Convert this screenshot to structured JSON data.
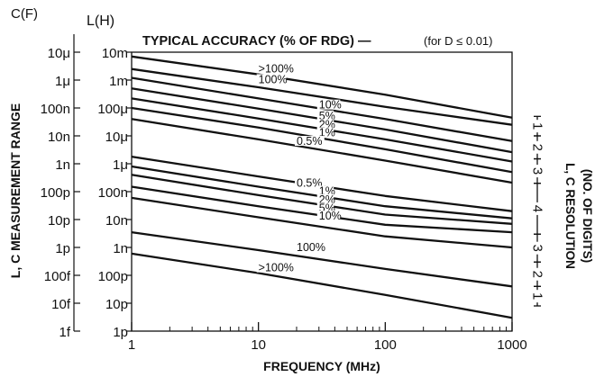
{
  "chart_data": {
    "type": "line",
    "title": "TYPICAL ACCURACY (% OF RDG) —",
    "subtitle": "(for D ≤ 0.01)",
    "xlabel": "FREQUENCY (MHz)",
    "ylabel": "L, C MEASUREMENT RANGE",
    "right_label_line1": "L, C RESOLUTION",
    "right_label_line2": "(NO. OF DIGITS)",
    "c_axis_header": "C(F)",
    "l_axis_header": "L(H)",
    "x_scale": "log",
    "xlim": [
      1,
      1000
    ],
    "x_ticks": [
      1,
      10,
      100,
      1000
    ],
    "x_tick_labels": [
      "1",
      "10",
      "100",
      "1000"
    ],
    "ylim_L_henry": [
      1e-12,
      0.01
    ],
    "ylim_C_farad": [
      1e-15,
      1e-05
    ],
    "y_scale": "log",
    "c_tick_labels": [
      "10μ",
      "1μ",
      "100n",
      "10n",
      "1n",
      "100p",
      "10p",
      "1p",
      "100f",
      "10f",
      "1f"
    ],
    "l_tick_labels": [
      "10m",
      "1m",
      "100μ",
      "10μ",
      "1μ",
      "100n",
      "10n",
      "1n",
      "100p",
      "10p",
      "1p"
    ],
    "grid": false,
    "series": [
      {
        "name": ">100%",
        "x": [
          1,
          10,
          100,
          1000
        ],
        "y": [
          0.007,
          0.0016,
          0.0003,
          4.5e-05
        ]
      },
      {
        "name": "100%",
        "x": [
          1,
          10,
          100,
          1000
        ],
        "y": [
          0.0025,
          0.00055,
          0.00011,
          2.5e-05
        ]
      },
      {
        "name": "10%",
        "x": [
          1,
          10,
          100,
          1000
        ],
        "y": [
          0.0012,
          0.00022,
          4e-05,
          6.5e-06
        ]
      },
      {
        "name": "5%",
        "x": [
          1,
          10,
          100,
          1000
        ],
        "y": [
          0.0005,
          9.5e-05,
          1.7e-05,
          2.6e-06
        ]
      },
      {
        "name": "2%",
        "x": [
          1,
          10,
          100,
          1000
        ],
        "y": [
          0.00022,
          4.2e-05,
          7.5e-06,
          1.2e-06
        ]
      },
      {
        "name": "1%",
        "x": [
          1,
          10,
          100,
          1000
        ],
        "y": [
          0.0001,
          2e-05,
          3.3e-06,
          5e-07
        ]
      },
      {
        "name": "0.5%",
        "x": [
          1,
          10,
          100,
          1000
        ],
        "y": [
          4e-05,
          7.5e-06,
          1.3e-06,
          2.1e-07
        ]
      },
      {
        "name": "0.5%",
        "x": [
          1,
          10,
          100,
          1000
        ],
        "y": [
          1.8e-06,
          3.5e-07,
          7e-08,
          2e-08
        ]
      },
      {
        "name": "1%",
        "x": [
          1,
          10,
          100,
          1000
        ],
        "y": [
          8e-07,
          1.5e-07,
          3e-08,
          1.1e-08
        ]
      },
      {
        "name": "2%",
        "x": [
          1,
          10,
          100,
          1000
        ],
        "y": [
          4e-07,
          7.5e-08,
          1.5e-08,
          7e-09
        ]
      },
      {
        "name": "5%",
        "x": [
          1,
          10,
          100,
          1000
        ],
        "y": [
          1.5e-07,
          3e-08,
          6.5e-09,
          3.5e-09
        ]
      },
      {
        "name": "10%",
        "x": [
          1,
          10,
          100,
          1000
        ],
        "y": [
          6e-08,
          1.2e-08,
          2.5e-09,
          1e-09
        ]
      },
      {
        "name": "100%",
        "x": [
          1,
          10,
          100,
          1000
        ],
        "y": [
          3.5e-09,
          8e-10,
          1.7e-10,
          4e-11
        ]
      },
      {
        "name": ">100%",
        "x": [
          1,
          10,
          100,
          1000
        ],
        "y": [
          6e-10,
          1.2e-10,
          2e-11,
          3e-12
        ]
      }
    ],
    "series_label_positions": [
      {
        "text": ">100%",
        "x": 10,
        "y": 0.0022
      },
      {
        "text": "100%",
        "x": 10,
        "y": 0.0009
      },
      {
        "text": "10%",
        "x": 30,
        "y": 0.00011
      },
      {
        "text": "5%",
        "x": 30,
        "y": 4.5e-05
      },
      {
        "text": "2%",
        "x": 30,
        "y": 2.2e-05
      },
      {
        "text": "1%",
        "x": 30,
        "y": 1.1e-05
      },
      {
        "text": "0.5%",
        "x": 20,
        "y": 5.5e-06
      },
      {
        "text": "0.5%",
        "x": 20,
        "y": 1.75e-07
      },
      {
        "text": "1%",
        "x": 30,
        "y": 9e-08
      },
      {
        "text": "2%",
        "x": 30,
        "y": 4.5e-08
      },
      {
        "text": "5%",
        "x": 30,
        "y": 2.2e-08
      },
      {
        "text": "10%",
        "x": 30,
        "y": 1.15e-08
      },
      {
        "text": "100%",
        "x": 20,
        "y": 8.5e-10
      },
      {
        "text": ">100%",
        "x": 10,
        "y": 1.6e-10
      }
    ],
    "resolution_digits": [
      {
        "label": "1",
        "from_L": 5e-05,
        "to_L": 1e-05
      },
      {
        "label": "2",
        "from_L": 1e-05,
        "to_L": 1.5e-06
      },
      {
        "label": "3",
        "from_L": 1.5e-06,
        "to_L": 2e-07
      },
      {
        "label": "4",
        "from_L": 2e-07,
        "to_L": 3e-09
      },
      {
        "label": "3",
        "from_L": 3e-09,
        "to_L": 3e-10
      },
      {
        "label": "2",
        "from_L": 3e-10,
        "to_L": 4e-11
      },
      {
        "label": "1",
        "from_L": 4e-11,
        "to_L": 8e-12
      }
    ]
  }
}
